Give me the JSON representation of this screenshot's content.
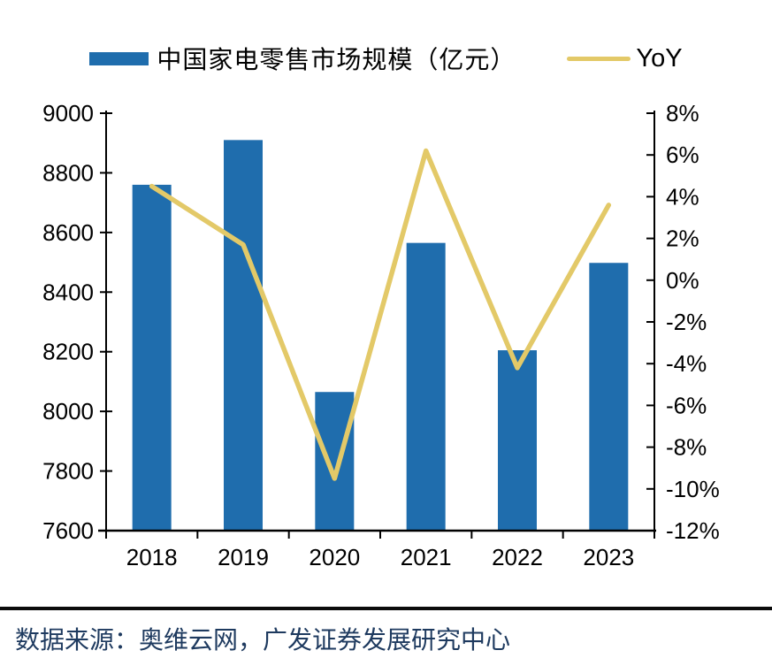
{
  "legend": {
    "bar_series_label": "中国家电零售市场规模（亿元）",
    "line_series_label": "YoY"
  },
  "source_note": "数据来源：奥维云网，广发证券发展研究中心",
  "colors": {
    "bar": "#1F6DAD",
    "line": "#E3C968",
    "axis": "#000000",
    "tick_label": "#000000",
    "divider": "#0B0B0B",
    "source_text": "#1E3A5F"
  },
  "chart_data": {
    "type": "bar",
    "subtype": "combo-bar-line-dual-axis",
    "categories": [
      "2018",
      "2019",
      "2020",
      "2021",
      "2022",
      "2023"
    ],
    "series": [
      {
        "name": "中国家电零售市场规模（亿元）",
        "type": "bar",
        "axis": "left",
        "values": [
          8760,
          8910,
          8065,
          8565,
          8205,
          8498
        ]
      },
      {
        "name": "YoY",
        "type": "line",
        "axis": "right",
        "unit": "%",
        "values": [
          4.5,
          1.7,
          -9.5,
          6.2,
          -4.2,
          3.6
        ]
      }
    ],
    "left_axis": {
      "min": 7600,
      "max": 9000,
      "step": 200,
      "tick_labels": [
        "9000",
        "8800",
        "8600",
        "8400",
        "8200",
        "8000",
        "7800",
        "7600"
      ]
    },
    "right_axis": {
      "min": -12,
      "max": 8,
      "step": 2,
      "tick_labels": [
        "8%",
        "6%",
        "4%",
        "2%",
        "0%",
        "-2%",
        "-4%",
        "-6%",
        "-8%",
        "-10%",
        "-12%"
      ]
    },
    "grid": false,
    "legend_position": "top-center",
    "title": "",
    "xlabel": "",
    "ylabel": ""
  }
}
